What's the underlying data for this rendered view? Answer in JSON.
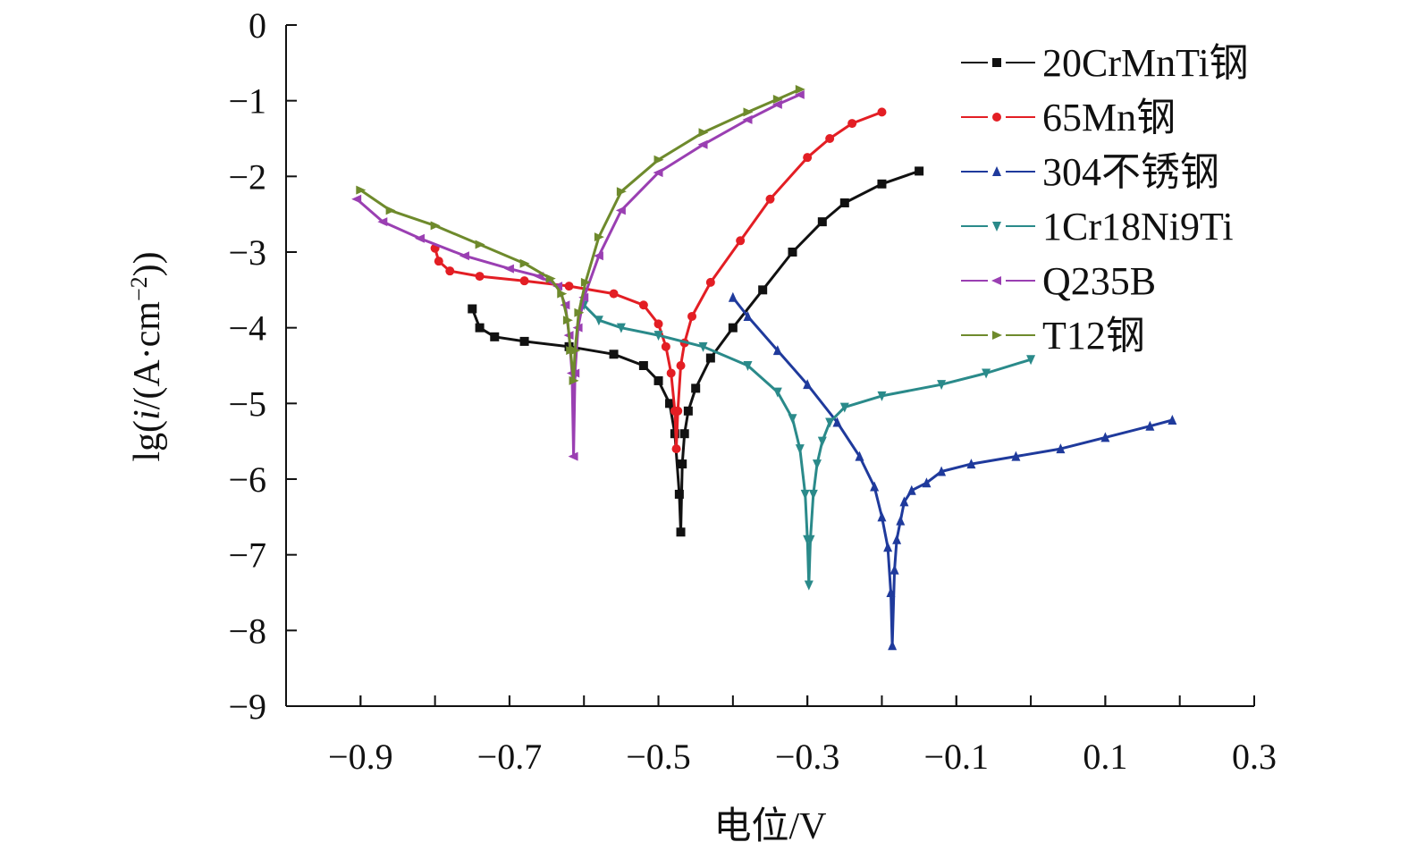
{
  "chart_data": {
    "type": "line",
    "xlabel": "电位/V",
    "ylabel_parts": [
      "lg(",
      "i",
      "/(A·cm",
      "−2",
      "))"
    ],
    "xlim": [
      -1.0,
      0.3
    ],
    "ylim": [
      -9,
      0
    ],
    "xticks": [
      -0.9,
      -0.7,
      -0.5,
      -0.3,
      -0.1,
      0.1,
      0.3
    ],
    "xtick_labels": [
      "−0.9",
      "−0.7",
      "−0.5",
      "−0.3",
      "−0.1",
      "0.1",
      "0.3"
    ],
    "yticks": [
      0,
      -1,
      -2,
      -3,
      -4,
      -5,
      -6,
      -7,
      -8,
      -9
    ],
    "ytick_labels": [
      "0",
      "−1",
      "−2",
      "−3",
      "−4",
      "−5",
      "−6",
      "−7",
      "−8",
      "−9"
    ],
    "grid": false,
    "legend_position": "top-right",
    "series": [
      {
        "name": "20CrMnTi钢",
        "color": "#111111",
        "marker": "square",
        "points": [
          [
            -0.75,
            -3.75
          ],
          [
            -0.74,
            -4.0
          ],
          [
            -0.72,
            -4.12
          ],
          [
            -0.68,
            -4.18
          ],
          [
            -0.62,
            -4.25
          ],
          [
            -0.56,
            -4.35
          ],
          [
            -0.52,
            -4.5
          ],
          [
            -0.5,
            -4.7
          ],
          [
            -0.485,
            -5.0
          ],
          [
            -0.478,
            -5.4
          ],
          [
            -0.472,
            -6.2
          ],
          [
            -0.47,
            -6.7
          ],
          [
            -0.468,
            -5.8
          ],
          [
            -0.465,
            -5.4
          ],
          [
            -0.46,
            -5.1
          ],
          [
            -0.45,
            -4.8
          ],
          [
            -0.43,
            -4.4
          ],
          [
            -0.4,
            -4.0
          ],
          [
            -0.36,
            -3.5
          ],
          [
            -0.32,
            -3.0
          ],
          [
            -0.28,
            -2.6
          ],
          [
            -0.25,
            -2.35
          ],
          [
            -0.2,
            -2.1
          ],
          [
            -0.15,
            -1.93
          ]
        ]
      },
      {
        "name": "65Mn钢",
        "color": "#e31e24",
        "marker": "circle",
        "points": [
          [
            -0.8,
            -2.95
          ],
          [
            -0.795,
            -3.12
          ],
          [
            -0.78,
            -3.25
          ],
          [
            -0.74,
            -3.32
          ],
          [
            -0.68,
            -3.38
          ],
          [
            -0.62,
            -3.45
          ],
          [
            -0.56,
            -3.55
          ],
          [
            -0.52,
            -3.7
          ],
          [
            -0.5,
            -3.95
          ],
          [
            -0.49,
            -4.25
          ],
          [
            -0.483,
            -4.6
          ],
          [
            -0.478,
            -5.1
          ],
          [
            -0.476,
            -5.6
          ],
          [
            -0.474,
            -5.1
          ],
          [
            -0.47,
            -4.5
          ],
          [
            -0.465,
            -4.2
          ],
          [
            -0.455,
            -3.85
          ],
          [
            -0.43,
            -3.4
          ],
          [
            -0.39,
            -2.85
          ],
          [
            -0.35,
            -2.3
          ],
          [
            -0.3,
            -1.75
          ],
          [
            -0.27,
            -1.5
          ],
          [
            -0.24,
            -1.3
          ],
          [
            -0.2,
            -1.15
          ]
        ]
      },
      {
        "name": "304不锈钢",
        "color": "#1f3a9c",
        "marker": "triangle-up",
        "points": [
          [
            -0.4,
            -3.6
          ],
          [
            -0.38,
            -3.85
          ],
          [
            -0.34,
            -4.3
          ],
          [
            -0.3,
            -4.75
          ],
          [
            -0.26,
            -5.25
          ],
          [
            -0.23,
            -5.7
          ],
          [
            -0.21,
            -6.1
          ],
          [
            -0.2,
            -6.5
          ],
          [
            -0.192,
            -6.9
          ],
          [
            -0.188,
            -7.5
          ],
          [
            -0.186,
            -8.2
          ],
          [
            -0.183,
            -7.2
          ],
          [
            -0.18,
            -6.8
          ],
          [
            -0.175,
            -6.55
          ],
          [
            -0.17,
            -6.3
          ],
          [
            -0.16,
            -6.15
          ],
          [
            -0.14,
            -6.05
          ],
          [
            -0.12,
            -5.9
          ],
          [
            -0.08,
            -5.8
          ],
          [
            -0.02,
            -5.7
          ],
          [
            0.04,
            -5.6
          ],
          [
            0.1,
            -5.45
          ],
          [
            0.16,
            -5.3
          ],
          [
            0.19,
            -5.22
          ]
        ]
      },
      {
        "name": "1Cr18Ni9Ti",
        "color": "#2a8a8a",
        "marker": "triangle-down",
        "points": [
          [
            -0.6,
            -3.7
          ],
          [
            -0.58,
            -3.9
          ],
          [
            -0.55,
            -4.0
          ],
          [
            -0.5,
            -4.1
          ],
          [
            -0.44,
            -4.25
          ],
          [
            -0.38,
            -4.5
          ],
          [
            -0.34,
            -4.85
          ],
          [
            -0.32,
            -5.2
          ],
          [
            -0.31,
            -5.6
          ],
          [
            -0.303,
            -6.2
          ],
          [
            -0.3,
            -6.8
          ],
          [
            -0.298,
            -7.4
          ],
          [
            -0.296,
            -6.8
          ],
          [
            -0.292,
            -6.2
          ],
          [
            -0.287,
            -5.8
          ],
          [
            -0.28,
            -5.5
          ],
          [
            -0.27,
            -5.25
          ],
          [
            -0.25,
            -5.05
          ],
          [
            -0.2,
            -4.9
          ],
          [
            -0.12,
            -4.75
          ],
          [
            -0.06,
            -4.6
          ],
          [
            0.0,
            -4.42
          ]
        ]
      },
      {
        "name": "Q235B",
        "color": "#9a3fb2",
        "marker": "triangle-left",
        "points": [
          [
            -0.905,
            -2.3
          ],
          [
            -0.87,
            -2.6
          ],
          [
            -0.82,
            -2.82
          ],
          [
            -0.76,
            -3.05
          ],
          [
            -0.7,
            -3.22
          ],
          [
            -0.66,
            -3.32
          ],
          [
            -0.635,
            -3.45
          ],
          [
            -0.625,
            -3.7
          ],
          [
            -0.62,
            -4.1
          ],
          [
            -0.616,
            -4.6
          ],
          [
            -0.614,
            -5.7
          ],
          [
            -0.612,
            -4.6
          ],
          [
            -0.608,
            -4.0
          ],
          [
            -0.6,
            -3.6
          ],
          [
            -0.58,
            -3.05
          ],
          [
            -0.55,
            -2.45
          ],
          [
            -0.5,
            -1.95
          ],
          [
            -0.44,
            -1.58
          ],
          [
            -0.38,
            -1.25
          ],
          [
            -0.34,
            -1.05
          ],
          [
            -0.31,
            -0.92
          ]
        ]
      },
      {
        "name": "T12钢",
        "color": "#6e8a2c",
        "marker": "triangle-right",
        "points": [
          [
            -0.9,
            -2.18
          ],
          [
            -0.86,
            -2.45
          ],
          [
            -0.8,
            -2.65
          ],
          [
            -0.74,
            -2.9
          ],
          [
            -0.68,
            -3.15
          ],
          [
            -0.645,
            -3.35
          ],
          [
            -0.63,
            -3.55
          ],
          [
            -0.622,
            -3.9
          ],
          [
            -0.618,
            -4.3
          ],
          [
            -0.614,
            -4.7
          ],
          [
            -0.612,
            -4.3
          ],
          [
            -0.607,
            -3.8
          ],
          [
            -0.598,
            -3.4
          ],
          [
            -0.58,
            -2.8
          ],
          [
            -0.55,
            -2.2
          ],
          [
            -0.5,
            -1.78
          ],
          [
            -0.44,
            -1.42
          ],
          [
            -0.38,
            -1.15
          ],
          [
            -0.34,
            -0.98
          ],
          [
            -0.31,
            -0.85
          ]
        ]
      }
    ]
  }
}
